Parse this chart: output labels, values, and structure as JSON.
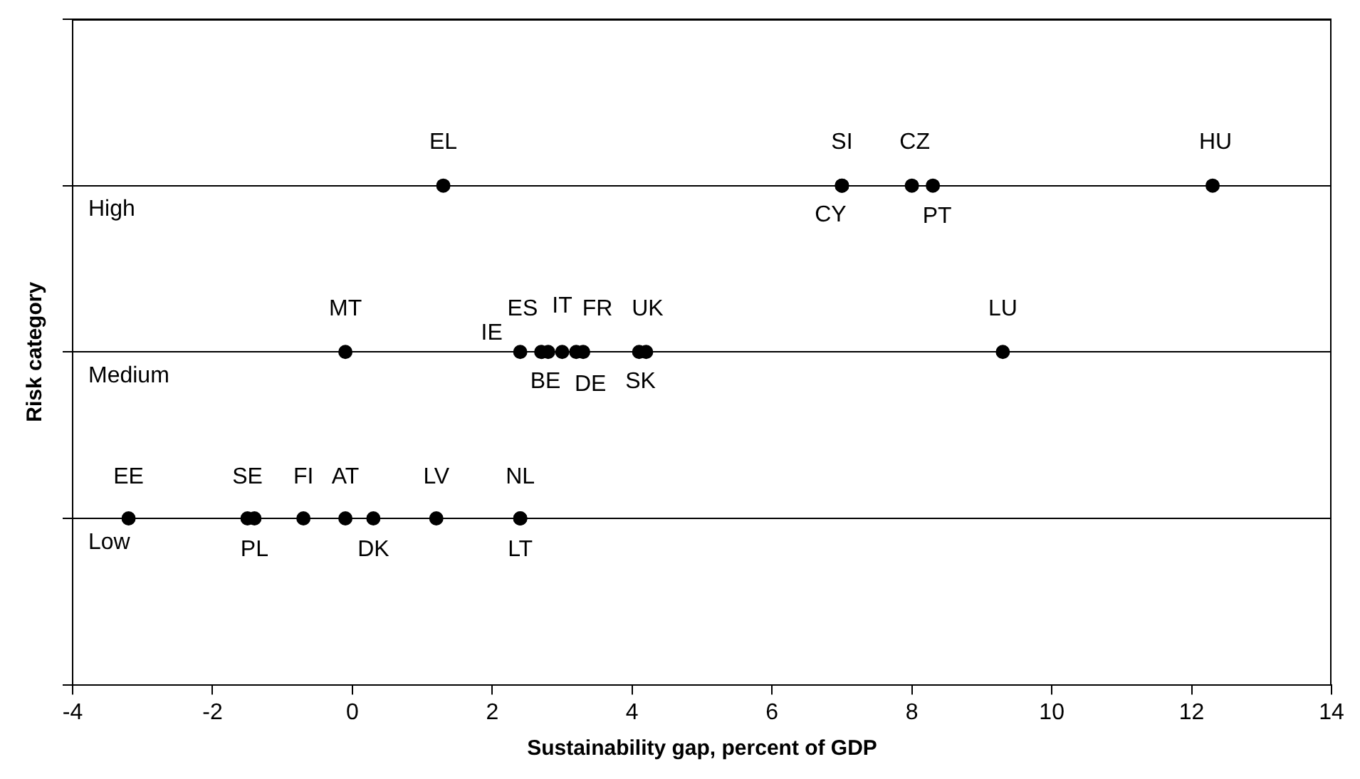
{
  "chart_data": {
    "type": "scatter",
    "orientation": "horizontal",
    "xlabel": "Sustainability gap, percent of GDP",
    "ylabel": "Risk category",
    "categories": [
      null,
      "High",
      "Medium",
      "Low",
      null
    ],
    "series": [
      {
        "color": "#000000",
        "x": [
          "High",
          "High",
          "High",
          "High",
          "High",
          "High",
          "Medium",
          "Medium",
          "Medium",
          "Medium",
          "Medium",
          "Medium",
          "Medium",
          "Medium",
          "Medium",
          "Medium",
          "Low",
          "Low",
          "Low",
          "Low",
          "Low",
          "Low",
          "Low",
          "Low",
          "Low"
        ],
        "values": [
          1.3,
          7.0,
          7.0,
          8.0,
          8.3,
          12.3,
          -0.1,
          2.4,
          2.7,
          2.8,
          3.0,
          3.2,
          3.3,
          4.1,
          4.2,
          9.3,
          -3.2,
          -1.5,
          -1.4,
          -0.7,
          -0.1,
          0.3,
          1.2,
          2.4,
          2.4
        ],
        "value_labels": [
          "EL",
          "SI",
          "CY",
          "CZ",
          "PT",
          "HU",
          "MT",
          "IE",
          "BE",
          "ES",
          "IT",
          "DE",
          "FR",
          "SK",
          "UK",
          "LU",
          "EE",
          "SE",
          "PL",
          "FI",
          "AT",
          "DK",
          "LV",
          "NL",
          "LT"
        ]
      }
    ],
    "marker": "circle",
    "grid": "y",
    "xlim": [
      -4,
      14
    ],
    "xticks": [
      -4,
      -2,
      0,
      2,
      4,
      6,
      8,
      10,
      12,
      14
    ]
  }
}
